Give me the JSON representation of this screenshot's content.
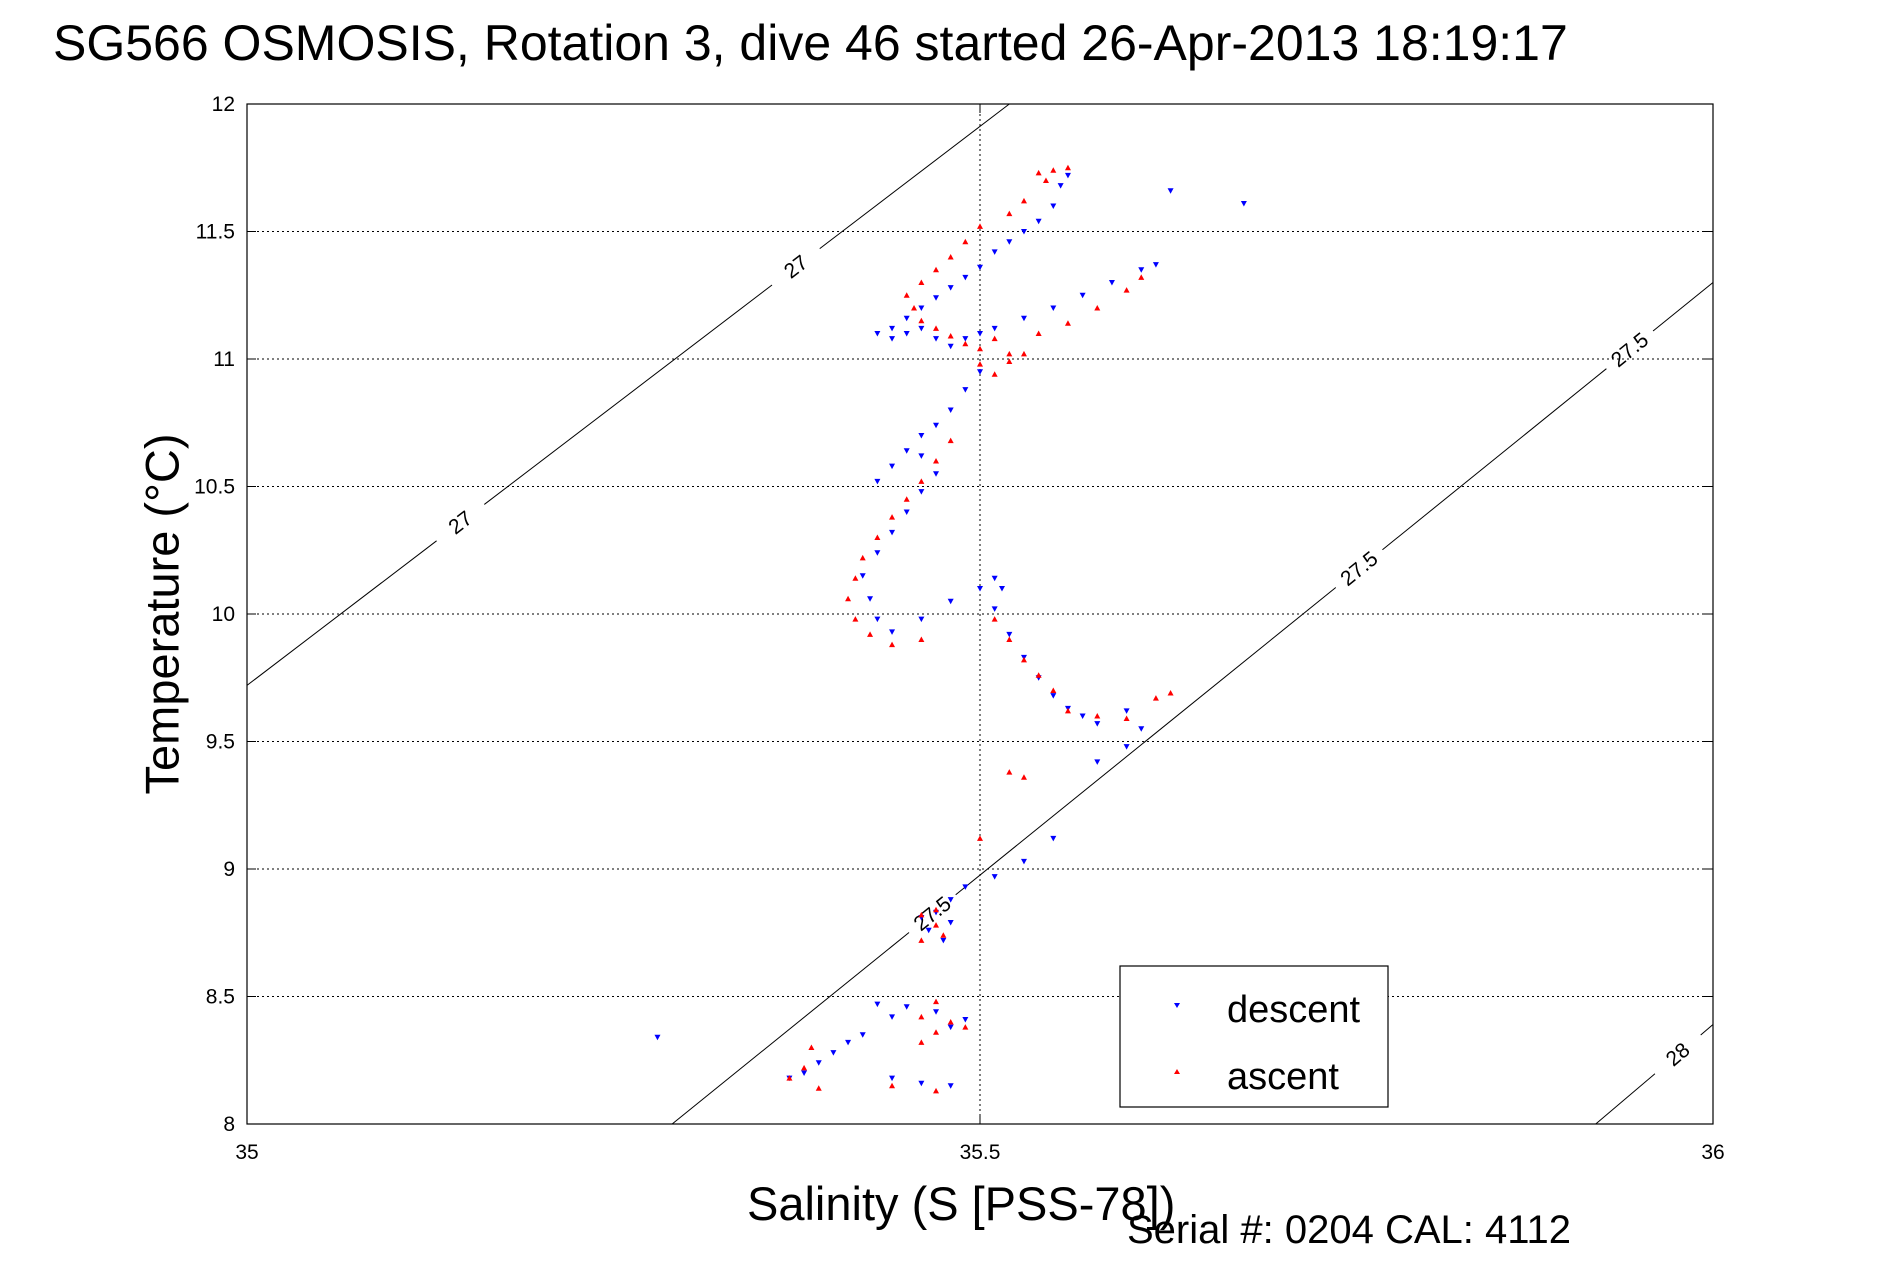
{
  "chart_data": {
    "type": "scatter",
    "title": "SG566 OSMOSIS, Rotation 3, dive 46 started 26-Apr-2013 18:19:17",
    "xlabel": "Salinity (S [PSS-78])",
    "ylabel": "Temperature (°C)",
    "xlim": [
      35,
      36
    ],
    "ylim": [
      8,
      12
    ],
    "xticks": [
      "35",
      "35.5",
      "36"
    ],
    "yticks": [
      "8",
      "8.5",
      "9",
      "9.5",
      "10",
      "10.5",
      "11",
      "11.5",
      "12"
    ],
    "grid": true,
    "legend": {
      "position": "bottom-right"
    },
    "footer": "Serial #: 0204  CAL: 4112",
    "colors": {
      "descent": "#0000ff",
      "ascent": "#ff0000"
    },
    "isopycnals": [
      {
        "label": "27",
        "points": [
          [
            35.0,
            9.72
          ],
          [
            35.52,
            12.0
          ]
        ]
      },
      {
        "label": "27.5",
        "points": [
          [
            35.29,
            8.0
          ],
          [
            36.0,
            11.3
          ]
        ]
      },
      {
        "label": "28",
        "points": [
          [
            35.92,
            8.0
          ],
          [
            36.0,
            8.39
          ]
        ]
      }
    ],
    "series": [
      {
        "name": "descent",
        "marker": "triangle-down",
        "points": [
          [
            35.56,
            11.72
          ],
          [
            35.555,
            11.68
          ],
          [
            35.55,
            11.6
          ],
          [
            35.54,
            11.54
          ],
          [
            35.53,
            11.5
          ],
          [
            35.52,
            11.46
          ],
          [
            35.51,
            11.42
          ],
          [
            35.5,
            11.36
          ],
          [
            35.49,
            11.32
          ],
          [
            35.48,
            11.28
          ],
          [
            35.47,
            11.24
          ],
          [
            35.46,
            11.2
          ],
          [
            35.45,
            11.16
          ],
          [
            35.44,
            11.12
          ],
          [
            35.43,
            11.1
          ],
          [
            35.44,
            11.08
          ],
          [
            35.45,
            11.1
          ],
          [
            35.46,
            11.12
          ],
          [
            35.47,
            11.08
          ],
          [
            35.48,
            11.05
          ],
          [
            35.49,
            11.08
          ],
          [
            35.5,
            11.1
          ],
          [
            35.51,
            11.12
          ],
          [
            35.53,
            11.16
          ],
          [
            35.55,
            11.2
          ],
          [
            35.57,
            11.25
          ],
          [
            35.59,
            11.3
          ],
          [
            35.61,
            11.35
          ],
          [
            35.62,
            11.37
          ],
          [
            35.63,
            11.66
          ],
          [
            35.5,
            10.95
          ],
          [
            35.49,
            10.88
          ],
          [
            35.48,
            10.8
          ],
          [
            35.47,
            10.74
          ],
          [
            35.46,
            10.7
          ],
          [
            35.45,
            10.64
          ],
          [
            35.44,
            10.58
          ],
          [
            35.43,
            10.52
          ],
          [
            35.46,
            10.62
          ],
          [
            35.47,
            10.55
          ],
          [
            35.46,
            10.48
          ],
          [
            35.45,
            10.4
          ],
          [
            35.44,
            10.32
          ],
          [
            35.43,
            10.24
          ],
          [
            35.42,
            10.15
          ],
          [
            35.425,
            10.06
          ],
          [
            35.43,
            9.98
          ],
          [
            35.44,
            9.93
          ],
          [
            35.46,
            9.98
          ],
          [
            35.48,
            10.05
          ],
          [
            35.5,
            10.1
          ],
          [
            35.51,
            10.14
          ],
          [
            35.515,
            10.1
          ],
          [
            35.51,
            10.02
          ],
          [
            35.52,
            9.92
          ],
          [
            35.53,
            9.83
          ],
          [
            35.54,
            9.75
          ],
          [
            35.55,
            9.68
          ],
          [
            35.56,
            9.63
          ],
          [
            35.57,
            9.6
          ],
          [
            35.58,
            9.57
          ],
          [
            35.6,
            9.62
          ],
          [
            35.61,
            9.55
          ],
          [
            35.6,
            9.48
          ],
          [
            35.58,
            9.42
          ],
          [
            35.55,
            9.12
          ],
          [
            35.53,
            9.03
          ],
          [
            35.51,
            8.97
          ],
          [
            35.49,
            8.93
          ],
          [
            35.48,
            8.88
          ],
          [
            35.47,
            8.83
          ],
          [
            35.465,
            8.76
          ],
          [
            35.475,
            8.72
          ],
          [
            35.48,
            8.79
          ],
          [
            35.46,
            8.81
          ],
          [
            35.44,
            8.42
          ],
          [
            35.43,
            8.47
          ],
          [
            35.45,
            8.46
          ],
          [
            35.47,
            8.44
          ],
          [
            35.49,
            8.41
          ],
          [
            35.48,
            8.38
          ],
          [
            35.42,
            8.35
          ],
          [
            35.41,
            8.32
          ],
          [
            35.4,
            8.28
          ],
          [
            35.39,
            8.24
          ],
          [
            35.38,
            8.2
          ],
          [
            35.37,
            8.18
          ],
          [
            35.44,
            8.18
          ],
          [
            35.46,
            8.16
          ],
          [
            35.48,
            8.15
          ],
          [
            35.28,
            8.34
          ],
          [
            35.68,
            11.61
          ]
        ]
      },
      {
        "name": "ascent",
        "marker": "triangle-up",
        "points": [
          [
            35.54,
            11.73
          ],
          [
            35.55,
            11.74
          ],
          [
            35.56,
            11.75
          ],
          [
            35.545,
            11.7
          ],
          [
            35.53,
            11.62
          ],
          [
            35.52,
            11.57
          ],
          [
            35.5,
            11.52
          ],
          [
            35.49,
            11.46
          ],
          [
            35.48,
            11.4
          ],
          [
            35.47,
            11.35
          ],
          [
            35.46,
            11.3
          ],
          [
            35.45,
            11.25
          ],
          [
            35.455,
            11.2
          ],
          [
            35.46,
            11.15
          ],
          [
            35.47,
            11.12
          ],
          [
            35.48,
            11.09
          ],
          [
            35.49,
            11.06
          ],
          [
            35.5,
            11.04
          ],
          [
            35.51,
            11.08
          ],
          [
            35.52,
            11.02
          ],
          [
            35.5,
            10.98
          ],
          [
            35.51,
            10.94
          ],
          [
            35.52,
            10.99
          ],
          [
            35.53,
            11.02
          ],
          [
            35.54,
            11.1
          ],
          [
            35.56,
            11.14
          ],
          [
            35.58,
            11.2
          ],
          [
            35.6,
            11.27
          ],
          [
            35.61,
            11.32
          ],
          [
            35.48,
            10.68
          ],
          [
            35.47,
            10.6
          ],
          [
            35.46,
            10.52
          ],
          [
            35.45,
            10.45
          ],
          [
            35.44,
            10.38
          ],
          [
            35.43,
            10.3
          ],
          [
            35.42,
            10.22
          ],
          [
            35.415,
            10.14
          ],
          [
            35.41,
            10.06
          ],
          [
            35.415,
            9.98
          ],
          [
            35.425,
            9.92
          ],
          [
            35.44,
            9.88
          ],
          [
            35.46,
            9.9
          ],
          [
            35.51,
            9.98
          ],
          [
            35.52,
            9.9
          ],
          [
            35.53,
            9.82
          ],
          [
            35.54,
            9.76
          ],
          [
            35.55,
            9.7
          ],
          [
            35.56,
            9.62
          ],
          [
            35.58,
            9.6
          ],
          [
            35.6,
            9.59
          ],
          [
            35.62,
            9.67
          ],
          [
            35.63,
            9.69
          ],
          [
            35.52,
            9.38
          ],
          [
            35.53,
            9.36
          ],
          [
            35.5,
            9.12
          ],
          [
            35.47,
            8.84
          ],
          [
            35.46,
            8.82
          ],
          [
            35.47,
            8.78
          ],
          [
            35.475,
            8.74
          ],
          [
            35.46,
            8.72
          ],
          [
            35.38,
            8.22
          ],
          [
            35.37,
            8.18
          ],
          [
            35.385,
            8.3
          ],
          [
            35.39,
            8.14
          ],
          [
            35.47,
            8.48
          ],
          [
            35.46,
            8.42
          ],
          [
            35.48,
            8.4
          ],
          [
            35.47,
            8.36
          ],
          [
            35.46,
            8.32
          ],
          [
            35.49,
            8.38
          ],
          [
            35.44,
            8.15
          ],
          [
            35.47,
            8.13
          ]
        ]
      }
    ]
  }
}
